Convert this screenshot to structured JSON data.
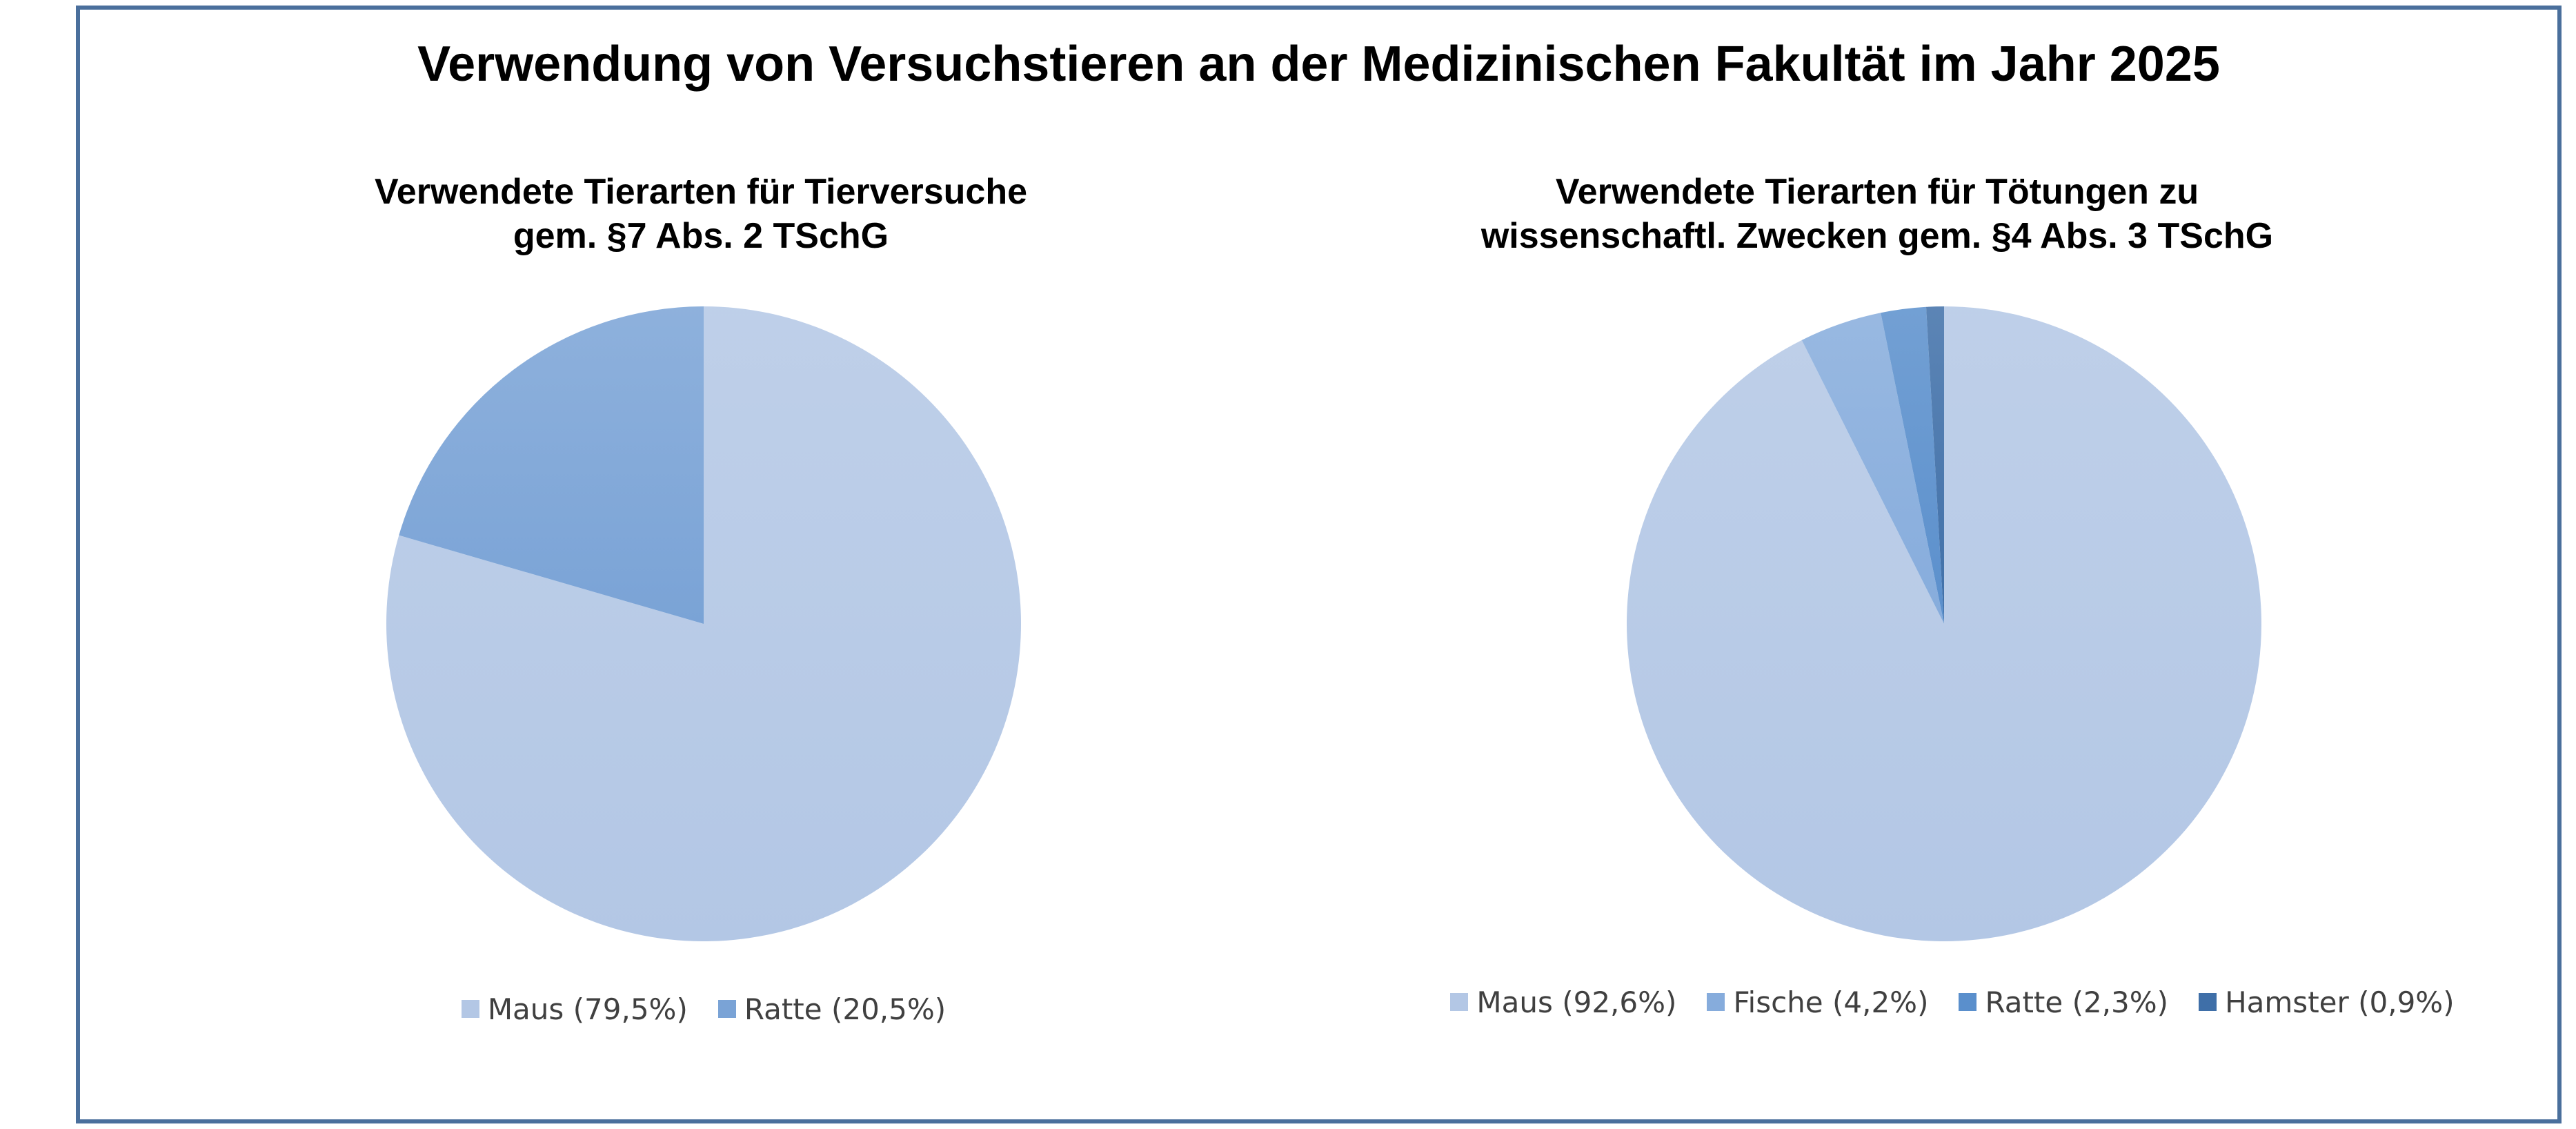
{
  "title": "Verwendung von Versuchstieren an der Medizinischen Fakultät im Jahr 2025",
  "colors": {
    "border": "#4a6f9c",
    "maus": "#b3c7e5",
    "fische": "#86acdc",
    "ratte_left": "#7aa3d6",
    "ratte_right": "#5a8fcc",
    "hamster": "#3f6fa8"
  },
  "chart_data": [
    {
      "type": "pie",
      "title": [
        "Verwendete Tierarten für Tierversuche",
        "gem. §7 Abs. 2 TSchG"
      ],
      "labels": [
        "Maus",
        "Ratte"
      ],
      "values": [
        79.5,
        20.5
      ],
      "legend": [
        "Maus (79,5%)",
        "Ratte (20,5%)"
      ],
      "colors": [
        "#b3c7e5",
        "#7aa3d6"
      ],
      "legend_position": "bottom"
    },
    {
      "type": "pie",
      "title": [
        "Verwendete Tierarten für Tötungen zu",
        "wissenschaftl. Zwecken gem. §4 Abs. 3 TSchG"
      ],
      "labels": [
        "Maus",
        "Fische",
        "Ratte",
        "Hamster"
      ],
      "values": [
        92.6,
        4.2,
        2.3,
        0.9
      ],
      "legend": [
        "Maus (92,6%)",
        "Fische (4,2%)",
        "Ratte (2,3%)",
        "Hamster (0,9%)"
      ],
      "colors": [
        "#b3c7e5",
        "#86acdc",
        "#5a8fcc",
        "#3f6fa8"
      ],
      "legend_position": "bottom"
    }
  ]
}
